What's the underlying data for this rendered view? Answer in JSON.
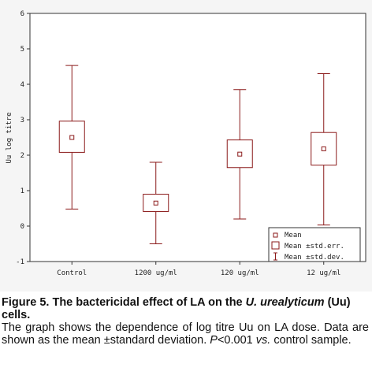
{
  "chart_data": {
    "type": "box",
    "ylabel": "Uu log titre",
    "ylim": [
      -1,
      6
    ],
    "yticks": [
      -1,
      0,
      1,
      2,
      3,
      4,
      5,
      6
    ],
    "grid": false,
    "legend_position": "bottom-right",
    "categories": [
      "Control",
      "1200 ug/ml",
      "120 ug/ml",
      "12 ug/ml"
    ],
    "series": [
      {
        "category": "Control",
        "mean": 2.5,
        "se_low": 2.08,
        "se_high": 2.96,
        "sd_low": 0.48,
        "sd_high": 4.53
      },
      {
        "category": "1200 ug/ml",
        "mean": 0.65,
        "se_low": 0.41,
        "se_high": 0.9,
        "sd_low": -0.5,
        "sd_high": 1.8
      },
      {
        "category": "120 ug/ml",
        "mean": 2.03,
        "se_low": 1.65,
        "se_high": 2.43,
        "sd_low": 0.2,
        "sd_high": 3.85
      },
      {
        "category": "12 ug/ml",
        "mean": 2.18,
        "se_low": 1.72,
        "se_high": 2.64,
        "sd_low": 0.03,
        "sd_high": 4.3
      }
    ],
    "legend": [
      "Mean",
      "Mean ±std.err.",
      "Mean ±std.dev."
    ],
    "colors": {
      "box": "#8b1a1a",
      "background": "#f5f5f5",
      "axis": "#333333"
    }
  },
  "caption": {
    "title_part1": "Figure 5. The bactericidal effect of LA on the ",
    "title_italic": "U. urealyticum",
    "title_part2": " (Uu) cells.",
    "body_part1": "The graph shows the dependence of log titre Uu on LA dose. Data are shown as the mean ±standard deviation. ",
    "body_italic1": "P",
    "body_part2": "<0.001 ",
    "body_italic2": "vs.",
    "body_part3": " control sample."
  }
}
